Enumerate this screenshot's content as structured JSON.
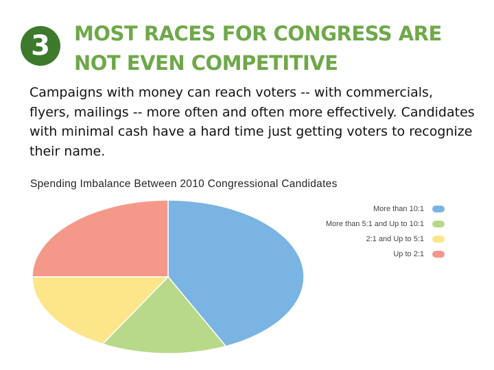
{
  "slide": {
    "number": "3",
    "title": "MOST RACES FOR CONGRESS ARE\nNOT EVEN COMPETITIVE",
    "body": "Campaigns with money can reach voters -- with commercials, flyers, mailings -- more often and often more effectively. Candidates with minimal cash have a hard time just getting voters to recognize their name."
  },
  "colors": {
    "badge": "#3d7a2b",
    "title": "#6fa84a"
  },
  "chart_data": {
    "type": "pie",
    "title": "Spending Imbalance Between 2010 Congressional Candidates",
    "legend_position": "right",
    "categories": [
      "More than 10:1",
      "More than 5:1 and Up to 10:1",
      "2:1 and Up to 5:1",
      "Up to 2:1"
    ],
    "values": [
      43,
      15,
      17,
      25
    ],
    "colors": [
      "#79b4e2",
      "#b8d98a",
      "#fde58a",
      "#f4998a"
    ]
  }
}
